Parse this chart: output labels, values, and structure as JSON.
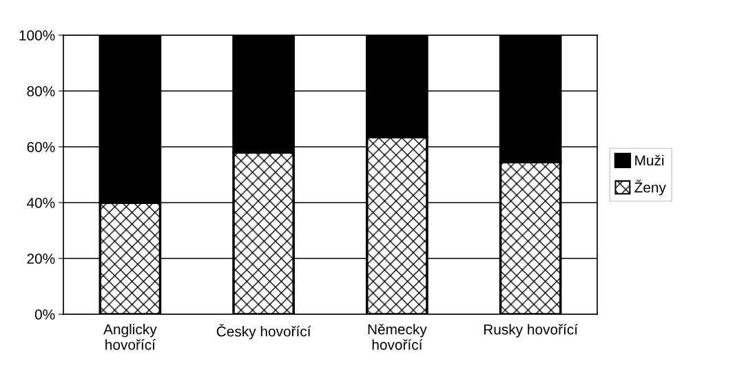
{
  "chart_data": {
    "type": "bar",
    "stacked": true,
    "categories": [
      "Anglicky\nhovořící",
      "Česky hovořící",
      "Německy\nhovořící",
      "Rusky hovořící"
    ],
    "series": [
      {
        "name": "Ženy",
        "color": "#ffffff",
        "values": [
          40,
          58,
          63.5,
          54.5
        ]
      },
      {
        "name": "Muži",
        "color": "#000000",
        "values": [
          60,
          42,
          36.5,
          45.5
        ]
      }
    ],
    "ylim": [
      0,
      100
    ],
    "yticks": [
      {
        "value": 0,
        "label": "0%"
      },
      {
        "value": 20,
        "label": "20%"
      },
      {
        "value": 40,
        "label": "40%"
      },
      {
        "value": 60,
        "label": "60%"
      },
      {
        "value": 80,
        "label": "80%"
      },
      {
        "value": 100,
        "label": "100%"
      }
    ],
    "grid": "y",
    "legend": "right"
  }
}
